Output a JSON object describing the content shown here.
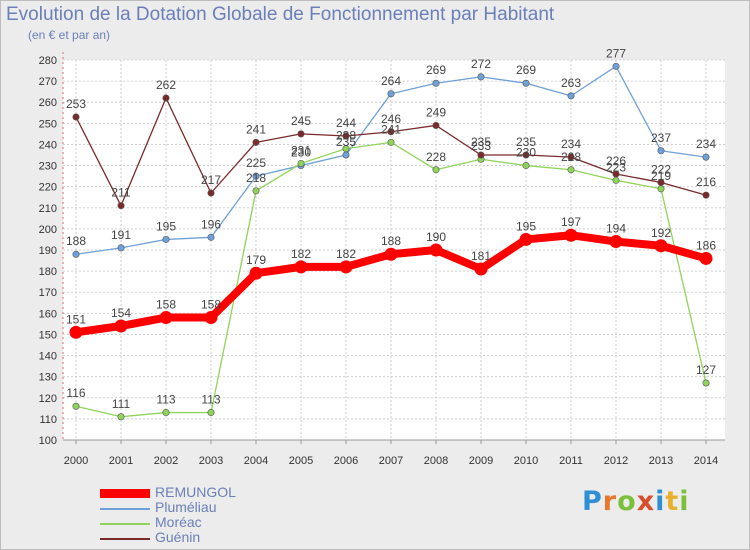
{
  "chart_data": {
    "type": "line",
    "title": "Evolution de la Dotation Globale de Fonctionnement par Habitant",
    "subtitle": "(en € et par an)",
    "xlabel": "",
    "ylabel": "",
    "ylim": [
      100,
      280
    ],
    "yticks": [
      100,
      110,
      120,
      130,
      140,
      150,
      160,
      170,
      180,
      190,
      200,
      210,
      220,
      230,
      240,
      250,
      260,
      270,
      280
    ],
    "categories": [
      "2000",
      "2001",
      "2002",
      "2003",
      "2004",
      "2005",
      "2006",
      "2007",
      "2008",
      "2009",
      "2010",
      "2011",
      "2012",
      "2013",
      "2014"
    ],
    "grid": true,
    "legend_position": "bottom-left",
    "series": [
      {
        "name": "REMUNGOL",
        "color": "#ff0000",
        "values": [
          151,
          154,
          158,
          158,
          179,
          182,
          182,
          188,
          190,
          181,
          195,
          197,
          194,
          192,
          186
        ]
      },
      {
        "name": "Pluméliau",
        "color": "#6fa0d8",
        "values": [
          188,
          191,
          195,
          196,
          225,
          230,
          235,
          264,
          269,
          272,
          269,
          263,
          277,
          237,
          234
        ]
      },
      {
        "name": "Moréac",
        "color": "#8fd45a",
        "values": [
          116,
          111,
          113,
          113,
          218,
          231,
          238,
          241,
          228,
          233,
          230,
          228,
          223,
          219,
          127
        ]
      },
      {
        "name": "Guénin",
        "color": "#7a2a2a",
        "values": [
          253,
          211,
          262,
          217,
          241,
          245,
          244,
          246,
          249,
          235,
          235,
          234,
          226,
          222,
          216
        ]
      }
    ]
  },
  "brand": {
    "letters": [
      "P",
      "r",
      "o",
      "x",
      "i",
      "t",
      "i"
    ]
  }
}
